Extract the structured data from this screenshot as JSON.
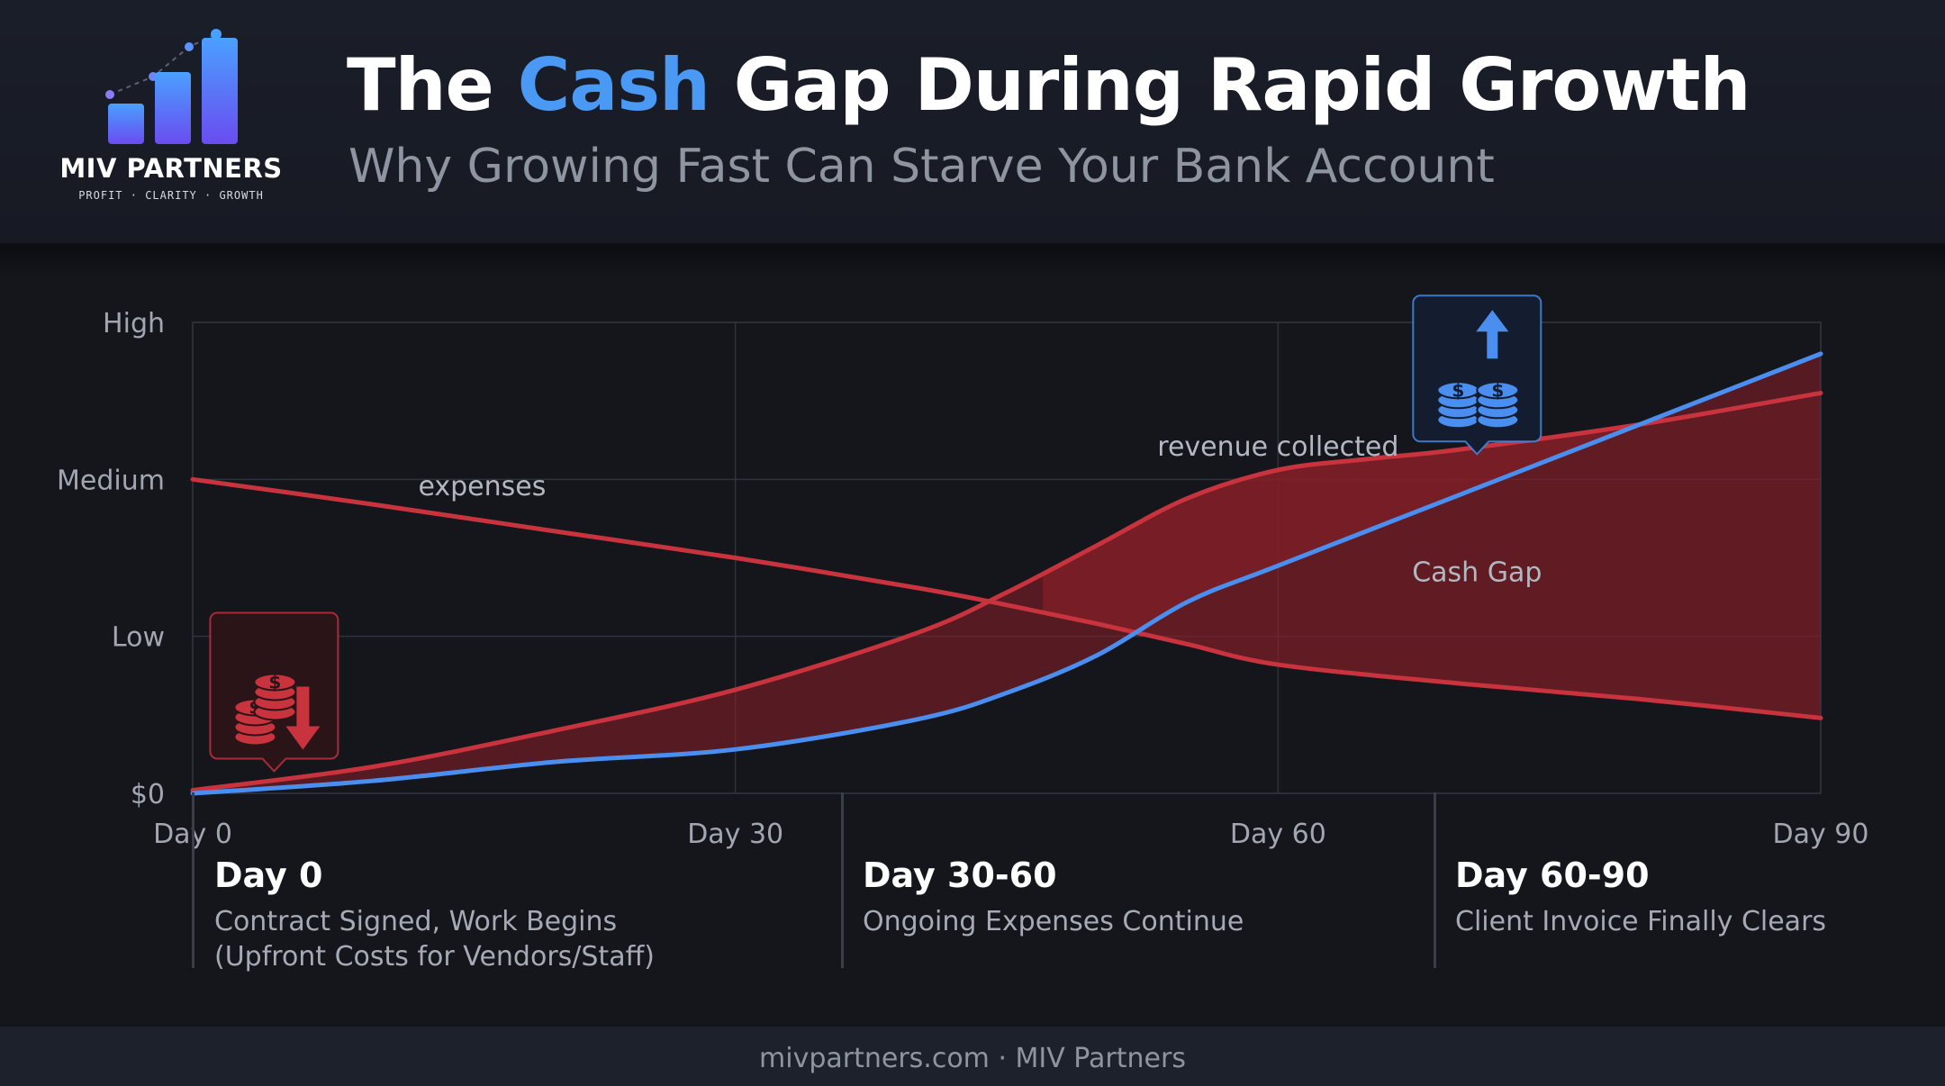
{
  "brand": {
    "name": "MIV PARTNERS",
    "tagline": "PROFIT · CLARITY · GROWTH"
  },
  "header": {
    "title_before": "The ",
    "title_accent": "Cash",
    "title_after": " Gap During Rapid Growth",
    "subtitle": "Why Growing Fast Can Starve Your Bank Account",
    "accent_color": "#4a9af5"
  },
  "chart_data": {
    "type": "area",
    "x_tick_labels": [
      "Day 0",
      "Day 30",
      "Day 60",
      "Day 90"
    ],
    "x_ticks": [
      0,
      30,
      60,
      90
    ],
    "xlim": [
      0,
      90
    ],
    "y_tick_labels": [
      "$0",
      "Low",
      "Medium",
      "High"
    ],
    "y_ticks": [
      0,
      1,
      2,
      3
    ],
    "ylim": [
      0,
      3
    ],
    "grid": true,
    "series": [
      {
        "name": "expenses",
        "color": "#c8333d",
        "x": [
          0,
          10,
          20,
          30,
          40,
          45,
          50,
          55,
          60,
          70,
          80,
          90
        ],
        "values": [
          2.0,
          1.84,
          1.67,
          1.5,
          1.31,
          1.2,
          1.08,
          0.95,
          0.82,
          0.7,
          0.6,
          0.48
        ]
      },
      {
        "name": "",
        "color": "#c8333d",
        "x": [
          0,
          10,
          20,
          30,
          40,
          45,
          50,
          55,
          60,
          65,
          70,
          80,
          90
        ],
        "values": [
          0.02,
          0.17,
          0.4,
          0.66,
          1.02,
          1.28,
          1.58,
          1.88,
          2.06,
          2.13,
          2.19,
          2.35,
          2.55
        ]
      },
      {
        "name": "",
        "color": "#4a8ef0",
        "x": [
          0,
          10,
          20,
          30,
          40,
          45,
          50,
          55,
          60,
          70,
          80,
          90
        ],
        "values": [
          0.0,
          0.08,
          0.2,
          0.28,
          0.47,
          0.64,
          0.88,
          1.22,
          1.45,
          1.9,
          2.35,
          2.8
        ]
      }
    ],
    "annotations": [
      {
        "text": "expenses",
        "x": 16,
        "y": 1.9
      },
      {
        "text": "revenue collected",
        "x": 60,
        "y": 2.15
      },
      {
        "text": "Cash Gap",
        "x": 71,
        "y": 1.35
      }
    ],
    "badges": [
      {
        "icon": "coins-down-icon",
        "color": "#c8333d",
        "x": 4.5,
        "y": 0.68
      },
      {
        "icon": "coins-up-icon",
        "color": "#4a8ef0",
        "x": 71,
        "y": 2.7
      }
    ]
  },
  "phases": [
    {
      "title": "Day 0",
      "desc_line1": "Contract Signed, Work Begins",
      "desc_line2": "(Upfront Costs for Vendors/Staff)"
    },
    {
      "title": "Day 30-60",
      "desc_line1": "Ongoing Expenses Continue",
      "desc_line2": ""
    },
    {
      "title": "Day 60-90",
      "desc_line1": "Client Invoice Finally Clears",
      "desc_line2": ""
    }
  ],
  "footer": {
    "text": "mivpartners.com · MIV Partners"
  }
}
